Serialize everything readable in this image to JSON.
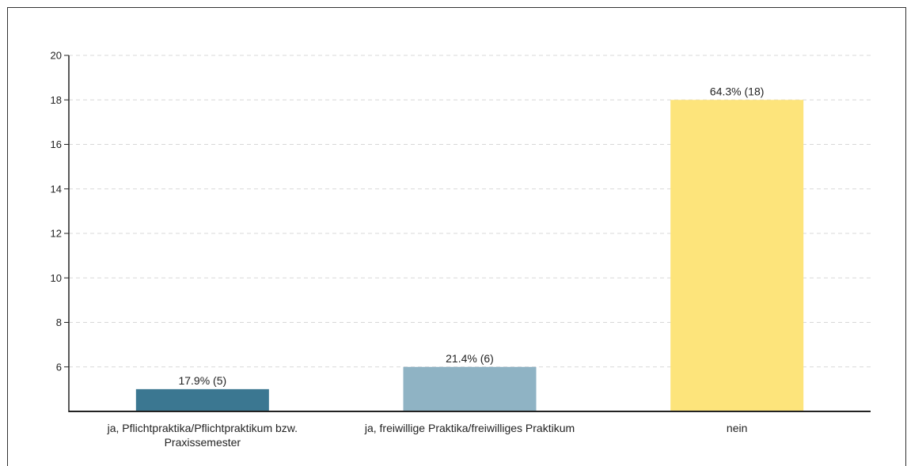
{
  "chart_data": {
    "type": "bar",
    "title": "",
    "xlabel": "",
    "ylabel": "",
    "ylim": [
      4,
      20
    ],
    "yticks": [
      6,
      8,
      10,
      12,
      14,
      16,
      18,
      20
    ],
    "grid": true,
    "categories": [
      {
        "line1": "ja, Pflichtpraktika/Pflichtpraktikum bzw.",
        "line2": "Praxissemester"
      },
      {
        "line1": "ja, freiwillige Praktika/freiwilliges Praktikum",
        "line2": ""
      },
      {
        "line1": "nein",
        "line2": ""
      }
    ],
    "values": [
      5,
      6,
      18
    ],
    "data_labels": [
      "17.9% (5)",
      "21.4% (6)",
      "64.3% (18)"
    ],
    "colors": [
      "#3b7791",
      "#8fb3c4",
      "#fde47b"
    ]
  }
}
